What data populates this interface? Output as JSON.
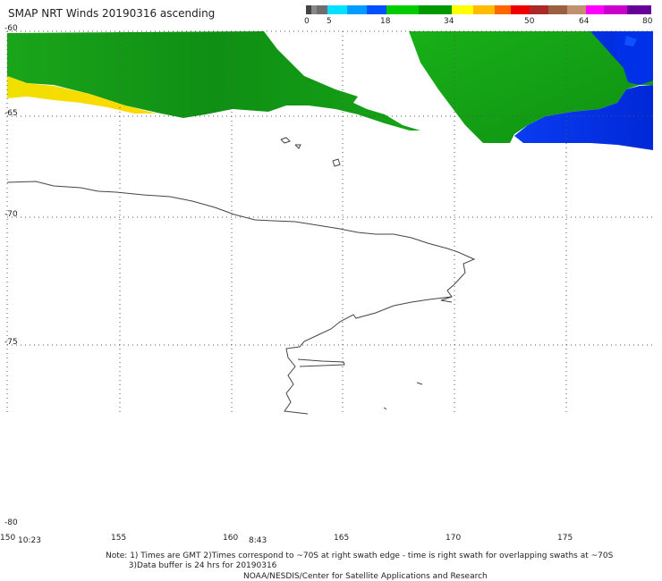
{
  "title": "SMAP NRT Winds 20190316 ascending",
  "colorbar": {
    "labels": [
      "0",
      "5",
      "18",
      "34",
      "50",
      "64",
      "80"
    ],
    "segments": [
      {
        "from": 0,
        "to": 5,
        "color": "#777777"
      },
      {
        "from": 5,
        "to": 18,
        "color": "#22a8ff"
      },
      {
        "from": 18,
        "to": 34,
        "color": "#00cc00"
      },
      {
        "from": 34,
        "to": 50,
        "color": "#ff8800"
      },
      {
        "from": 50,
        "to": 64,
        "color": "#aa6633"
      },
      {
        "from": 64,
        "to": 80,
        "color": "#cc00cc"
      }
    ]
  },
  "map": {
    "lat_labels": [
      "-60",
      "-65",
      "-70",
      "-75",
      "-80"
    ],
    "lon_labels": [
      "150",
      "155",
      "160",
      "165",
      "170",
      "175"
    ],
    "time_labels": [
      "10:23",
      "8:43"
    ]
  },
  "note_lines": [
    "Note: 1) Times are GMT 2)Times correspond to ~70S at right swath edge - time is right swath for overlapping swaths at ~70S",
    "         3)Data buffer is 24 hrs for 20190316"
  ],
  "credit": "NOAA/NESDIS/Center for Satellite Applications and Research",
  "colors": {
    "green": "#18a818",
    "blue": "#0033ee",
    "yellow": "#ffe000"
  }
}
